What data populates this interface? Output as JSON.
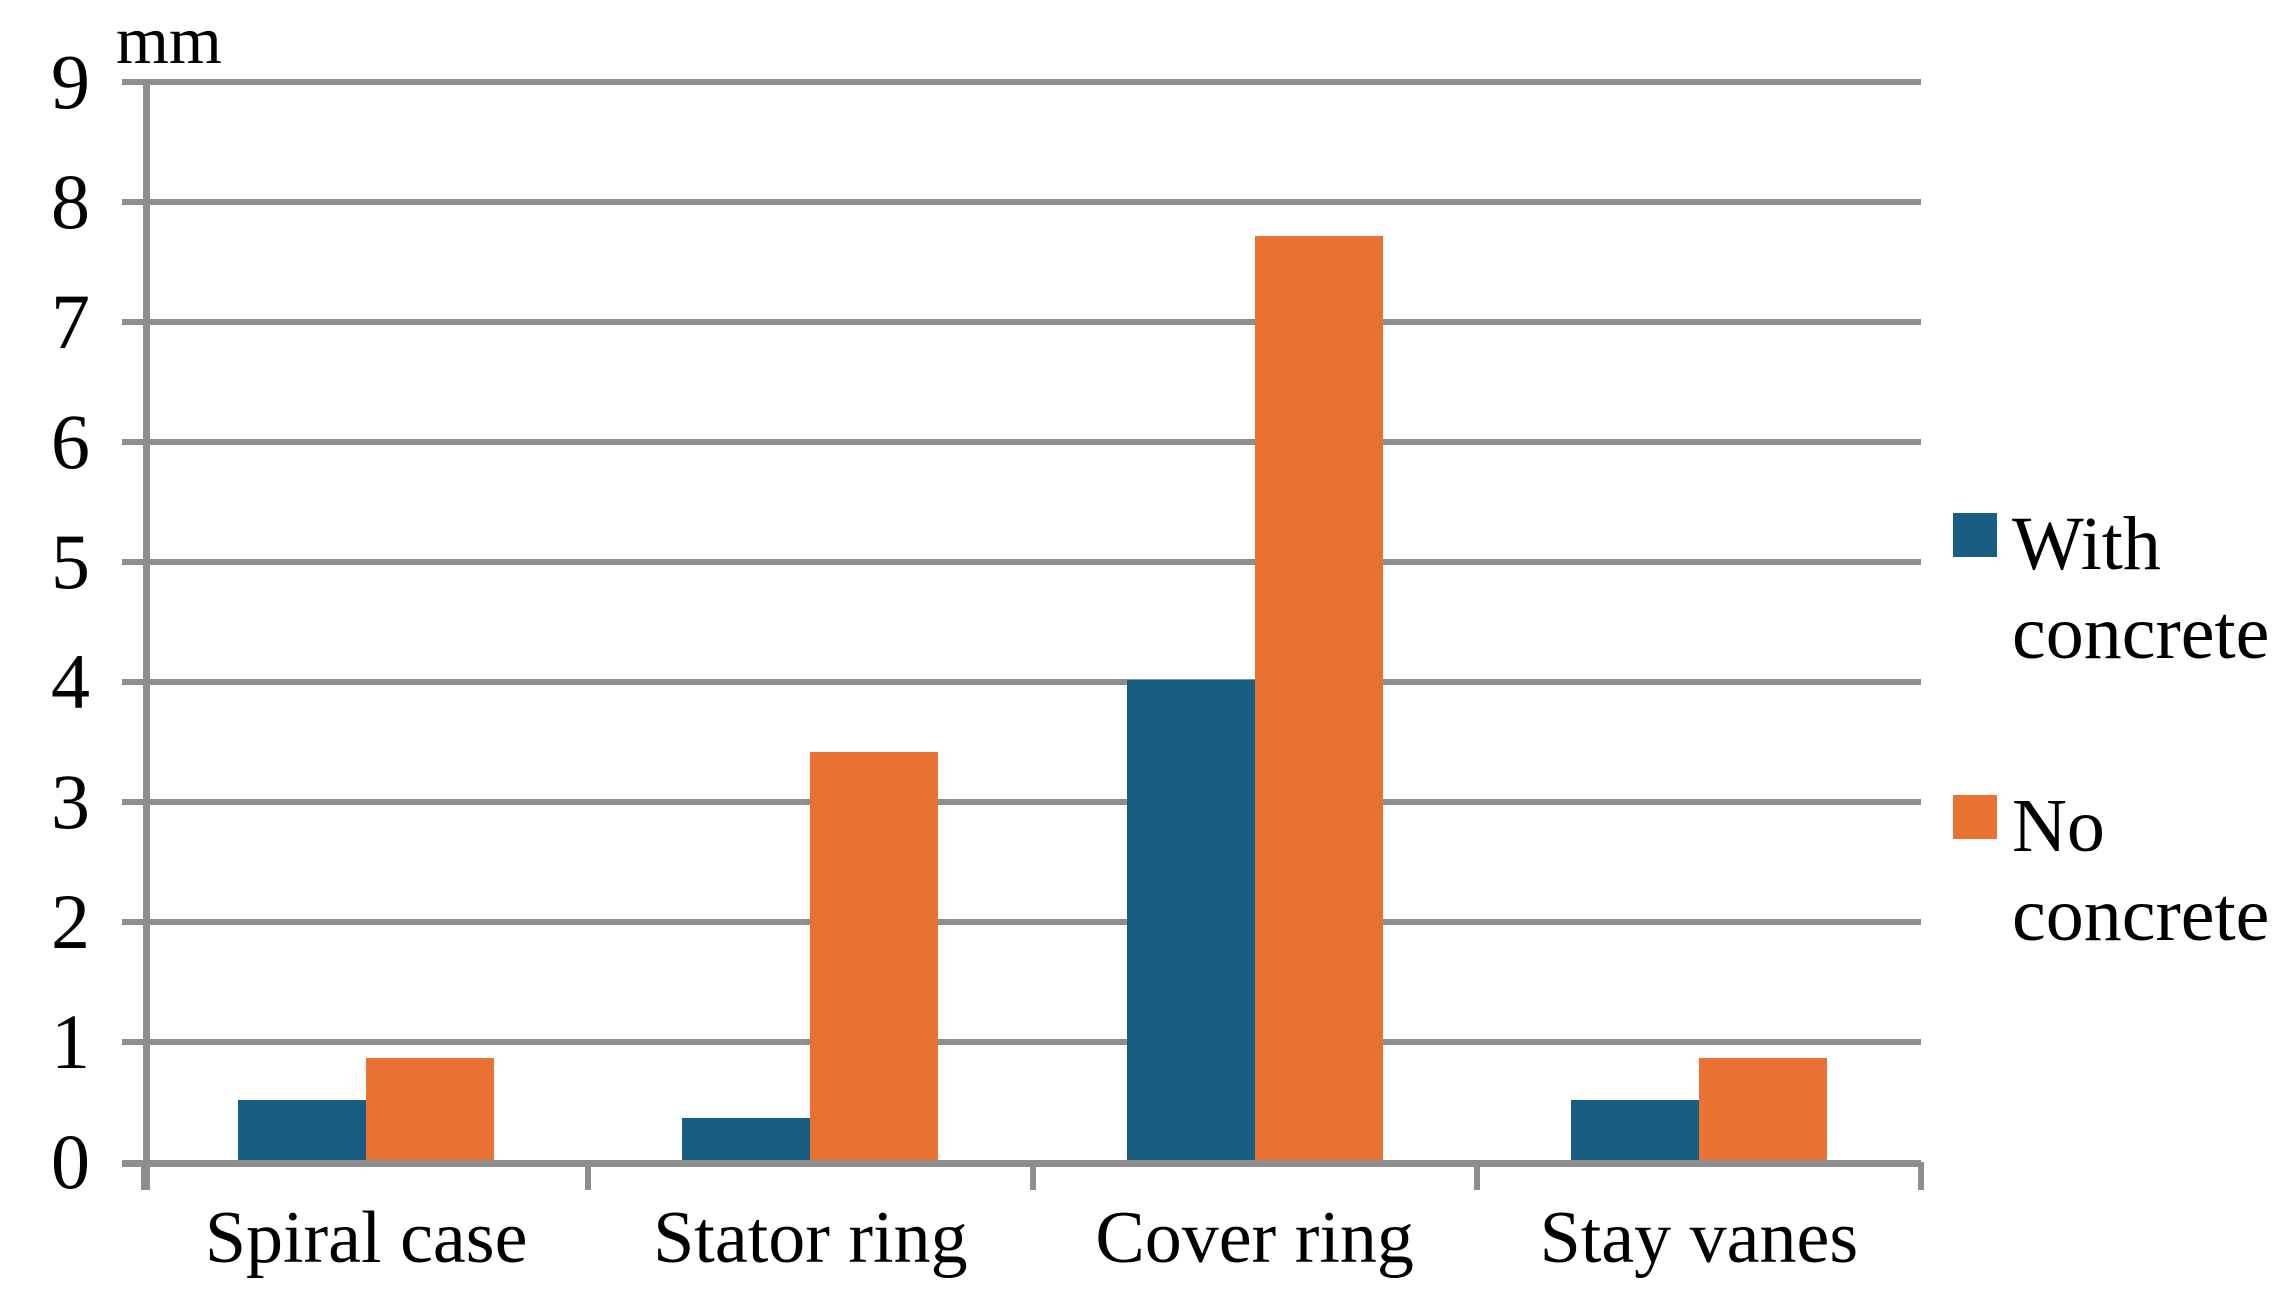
{
  "chart_data": {
    "type": "bar",
    "title": "",
    "unit_label": "mm",
    "categories": [
      "Spiral case",
      "Stator ring",
      "Cover ring",
      "Stay vanes"
    ],
    "series": [
      {
        "name": "With concrete",
        "color": "#175E82",
        "values": [
          0.5,
          0.35,
          4.0,
          0.5
        ]
      },
      {
        "name": "No concrete",
        "color": "#E97132",
        "values": [
          0.85,
          3.4,
          7.7,
          0.85
        ]
      }
    ],
    "ylim": [
      0,
      9
    ],
    "ytick_step": 1,
    "ytick_labels": [
      "0",
      "1",
      "2",
      "3",
      "4",
      "5",
      "6",
      "7",
      "8",
      "9"
    ],
    "grid": "horizontal",
    "legend_position": "right",
    "gridline_color": "#8E8E8E",
    "axis_color": "#8E8E8E",
    "text_color": "#000000",
    "background_color": "#FFFFFF"
  }
}
